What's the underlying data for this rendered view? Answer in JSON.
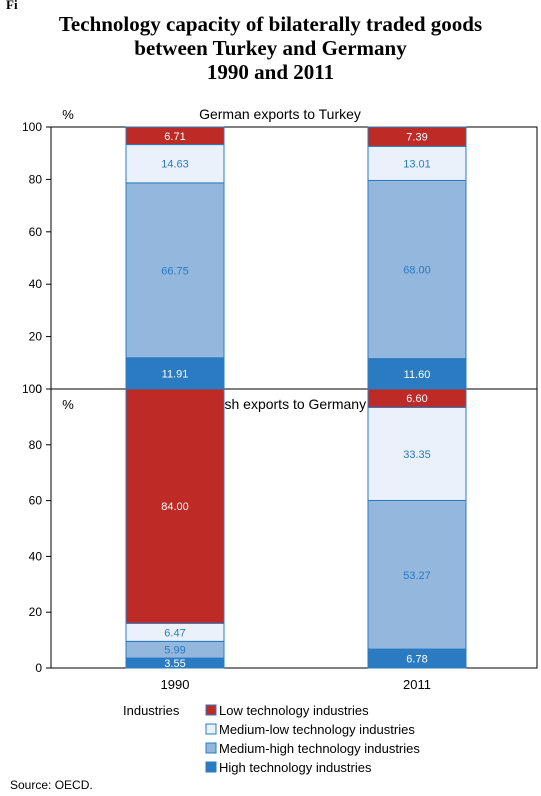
{
  "figure_label": "Fi",
  "title_lines": [
    "Technology capacity of bilaterally traded goods",
    "between Turkey and Germany",
    "1990 and 2011"
  ],
  "source": "Source: OECD.",
  "colors": {
    "low": "#be2a25",
    "medium_low": "#eaf1fa",
    "medium_high": "#93b7dd",
    "high": "#2a7bc1",
    "value_text_dark_bg": "#ffffff",
    "value_text_light_bg": "#2a7bc1"
  },
  "chart_data": [
    {
      "type": "bar",
      "stacked": true,
      "title": "German exports to Turkey",
      "ylabel": "%",
      "ylim": [
        0,
        100
      ],
      "yticks": [
        0,
        20,
        40,
        60,
        80,
        100
      ],
      "categories": [
        "1990",
        "2011"
      ],
      "series": [
        {
          "name": "High technology industries",
          "key": "high",
          "values": [
            11.91,
            11.6
          ],
          "labels": [
            "11.91",
            "11.60"
          ]
        },
        {
          "name": "Medium-high technology industries",
          "key": "medium_high",
          "values": [
            66.75,
            68.0
          ],
          "labels": [
            "66.75",
            "68.00"
          ]
        },
        {
          "name": "Medium-low technology industries",
          "key": "medium_low",
          "values": [
            14.63,
            13.01
          ],
          "labels": [
            "14.63",
            "13.01"
          ]
        },
        {
          "name": "Low technology industries",
          "key": "low",
          "values": [
            6.71,
            7.39
          ],
          "labels": [
            "6.71",
            "7.39"
          ]
        }
      ],
      "show_category_labels": false
    },
    {
      "type": "bar",
      "stacked": true,
      "title": "Turkish exports to Germany",
      "ylabel": "%",
      "ylim": [
        0,
        100
      ],
      "yticks": [
        0,
        20,
        40,
        60,
        80,
        100
      ],
      "categories": [
        "1990",
        "2011"
      ],
      "series": [
        {
          "name": "High technology industries",
          "key": "high",
          "values": [
            3.55,
            6.78
          ],
          "labels": [
            "3.55",
            "6.78"
          ]
        },
        {
          "name": "Medium-high technology industries",
          "key": "medium_high",
          "values": [
            5.99,
            53.27
          ],
          "labels": [
            "5.99",
            "53.27"
          ]
        },
        {
          "name": "Medium-low technology industries",
          "key": "medium_low",
          "values": [
            6.47,
            33.35
          ],
          "labels": [
            "6.47",
            "33.35"
          ]
        },
        {
          "name": "Low technology industries",
          "key": "low",
          "values": [
            84.0,
            6.6
          ],
          "labels": [
            "84.00",
            "6.60"
          ]
        }
      ],
      "show_category_labels": true
    }
  ],
  "legend": {
    "title": "Industries",
    "items": [
      {
        "label": "Low technology industries",
        "key": "low"
      },
      {
        "label": "Medium-low technology industries",
        "key": "medium_low"
      },
      {
        "label": "Medium-high technology industries",
        "key": "medium_high"
      },
      {
        "label": "High technology industries",
        "key": "high"
      }
    ]
  }
}
